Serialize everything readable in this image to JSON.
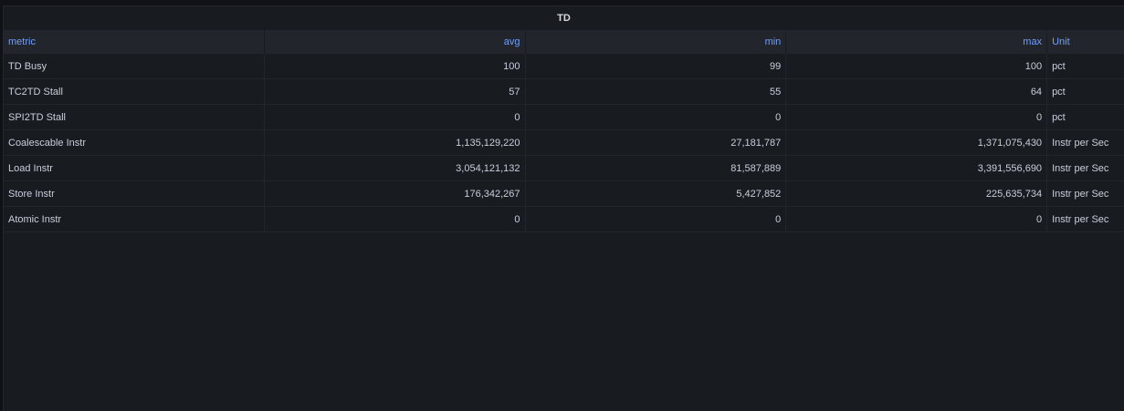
{
  "panel": {
    "title": "TD"
  },
  "columns": {
    "metric": "metric",
    "avg": "avg",
    "min": "min",
    "max": "max",
    "unit": "Unit"
  },
  "rows": [
    {
      "metric": "TD Busy",
      "avg": "100",
      "min": "99",
      "max": "100",
      "unit": "pct"
    },
    {
      "metric": "TC2TD Stall",
      "avg": "57",
      "min": "55",
      "max": "64",
      "unit": "pct"
    },
    {
      "metric": "SPI2TD Stall",
      "avg": "0",
      "min": "0",
      "max": "0",
      "unit": "pct"
    },
    {
      "metric": "Coalescable Instr",
      "avg": "1,135,129,220",
      "min": "27,181,787",
      "max": "1,371,075,430",
      "unit": "Instr per Sec"
    },
    {
      "metric": "Load Instr",
      "avg": "3,054,121,132",
      "min": "81,587,889",
      "max": "3,391,556,690",
      "unit": "Instr per Sec"
    },
    {
      "metric": "Store Instr",
      "avg": "176,342,267",
      "min": "5,427,852",
      "max": "225,635,734",
      "unit": "Instr per Sec"
    },
    {
      "metric": "Atomic Instr",
      "avg": "0",
      "min": "0",
      "max": "0",
      "unit": "Instr per Sec"
    }
  ]
}
